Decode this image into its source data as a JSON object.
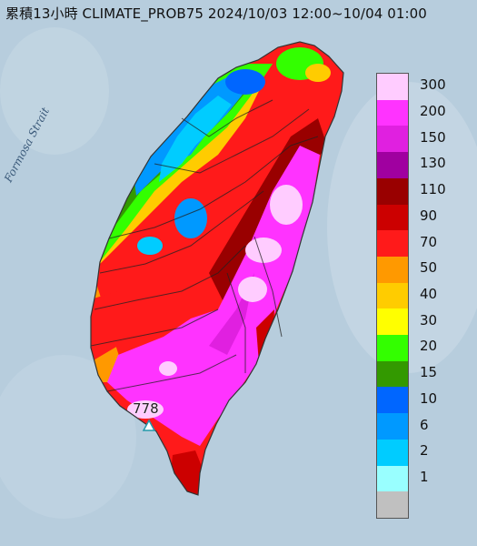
{
  "map": {
    "title": "累積13小時 CLIMATE_PROB75 2024/10/03 12:00~10/04 01:00",
    "sea_label": "Formosa Strait",
    "peak_value": "778",
    "colors": {
      "sea": "#b7cddd",
      "land": "#8a9fa8"
    }
  },
  "legend": {
    "items": [
      {
        "label": "300",
        "color": "#ffccff"
      },
      {
        "label": "200",
        "color": "#ff33ff"
      },
      {
        "label": "150",
        "color": "#e020e0"
      },
      {
        "label": "130",
        "color": "#a000a0"
      },
      {
        "label": "110",
        "color": "#990000"
      },
      {
        "label": "90",
        "color": "#cc0000"
      },
      {
        "label": "70",
        "color": "#ff1a1a"
      },
      {
        "label": "50",
        "color": "#ff9900"
      },
      {
        "label": "40",
        "color": "#ffcc00"
      },
      {
        "label": "30",
        "color": "#ffff00"
      },
      {
        "label": "20",
        "color": "#33ff00"
      },
      {
        "label": "15",
        "color": "#339900"
      },
      {
        "label": "10",
        "color": "#0066ff"
      },
      {
        "label": "6",
        "color": "#0099ff"
      },
      {
        "label": "2",
        "color": "#00ccff"
      },
      {
        "label": "1",
        "color": "#99ffff"
      },
      {
        "label": "",
        "color": "#c0c0c0"
      }
    ]
  }
}
